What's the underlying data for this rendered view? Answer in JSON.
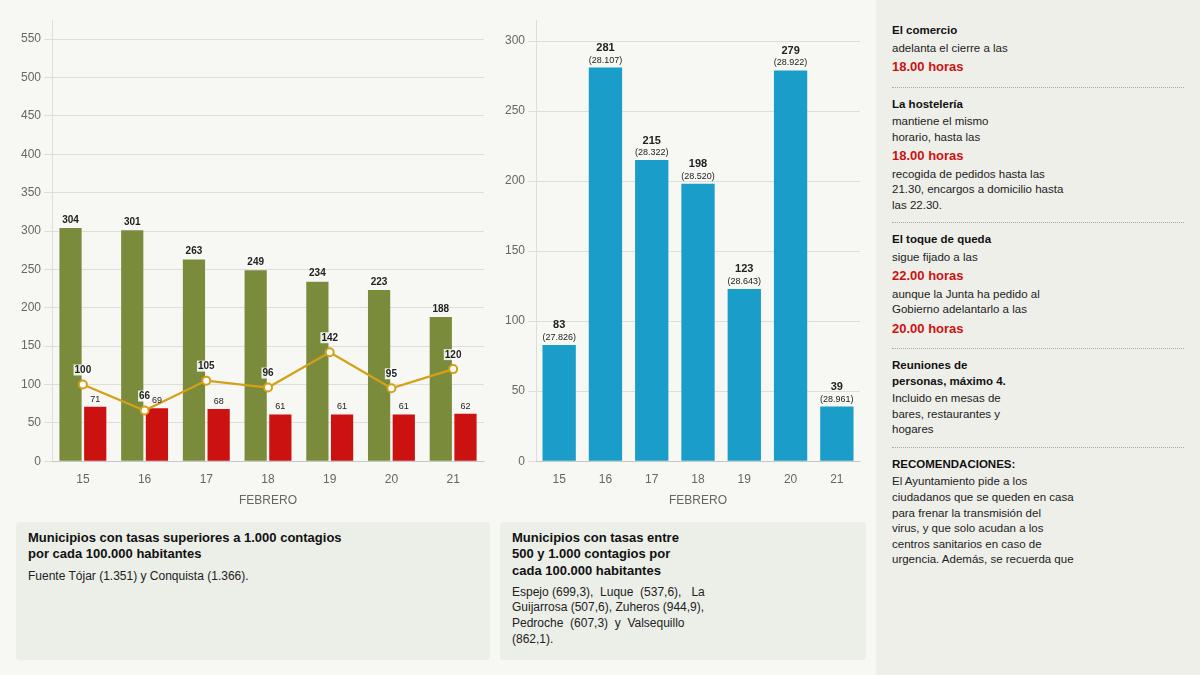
{
  "chart_data": [
    {
      "type": "bar",
      "xlabel": "FEBRERO",
      "categories": [
        "15",
        "16",
        "17",
        "18",
        "19",
        "20",
        "21"
      ],
      "series": [
        {
          "type": "bar",
          "color": "#7a8c3c",
          "values": [
            304,
            301,
            263,
            249,
            234,
            223,
            188
          ]
        },
        {
          "type": "bar",
          "color": "#cc1111",
          "values": [
            71,
            69,
            68,
            61,
            61,
            61,
            62
          ]
        },
        {
          "type": "line",
          "color": "#d4a017",
          "marker": "circle",
          "values": [
            100,
            66,
            105,
            96,
            142,
            95,
            120
          ]
        }
      ],
      "ylim": [
        0,
        575
      ],
      "yticks": [
        0,
        50,
        100,
        150,
        200,
        250,
        300,
        350,
        400,
        450,
        500,
        550
      ],
      "grid": true,
      "data_labels": true,
      "annotations": [
        "Municipios con tasas superiores a 1.000 contagios\npor cada 100.000 habitantes",
        "Fuente Tójar (1.351) y Conquista (1.366)."
      ]
    },
    {
      "type": "bar",
      "xlabel": "FEBRERO",
      "categories": [
        "15",
        "16",
        "17",
        "18",
        "19",
        "20",
        "21"
      ],
      "series": [
        {
          "type": "bar",
          "color": "#1a9ec9",
          "values": [
            83,
            281,
            215,
            198,
            123,
            279,
            39
          ],
          "sub_labels": [
            "(27.826)",
            "(28.107)",
            "(28.322)",
            "(28.520)",
            "(28.643)",
            "(28.922)",
            "(28.961)"
          ]
        }
      ],
      "ylim": [
        0,
        315
      ],
      "yticks": [
        0,
        50,
        100,
        150,
        200,
        250,
        300
      ],
      "grid": true,
      "data_labels": true,
      "annotations": [
        "Municipios con tasas entre\n500 y 1.000 contagios por\ncada 100.000 habitantes",
        "Espejo (699,3),  Luque  (537,6),   La\nGuijarrosa (507,6), Zuheros (944,9),\nPedroche  (607,3)  y  Valsequillo\n(862,1)."
      ]
    },
    {
      "type": "text",
      "annotations": [
        [
          {
            "text": "El comercio"
          },
          {
            "text": "adelanta el cierre a las"
          },
          {
            "text": "18.00 horas",
            "color": "#cc1111"
          }
        ],
        [
          {
            "text": "La hostelería"
          },
          {
            "text": "mantiene el mismo\nhorario, hasta las"
          },
          {
            "text": "18.00 horas",
            "color": "#cc1111"
          },
          {
            "text": "recogida de pedidos hasta las\n21.30, encargos a domicilio hasta\nlas 22.30."
          }
        ],
        [
          {
            "text": "El toque de queda"
          },
          {
            "text": "sigue fijado a las"
          },
          {
            "text": "22.00 horas",
            "color": "#cc1111"
          },
          {
            "text": "aunque la Junta ha pedido al\nGobierno adelantarlo a las"
          },
          {
            "text": "20.00 horas",
            "color": "#cc1111"
          }
        ],
        [
          {
            "text": "Reuniones de\npersonas, máximo 4."
          },
          {
            "text": "Incluido en mesas de\nbares, restaurantes y\nhogares"
          }
        ],
        [
          {
            "text": "RECOMENDACIONES:"
          },
          {
            "text": "El Ayuntamiento pide a los\nciudadanos que se queden en casa\npara frenar la transmisión del\nvirus, y que solo acudan a los\ncentros sanitarios en caso de\nurgencia. Además, se recuerda que"
          }
        ]
      ]
    }
  ]
}
